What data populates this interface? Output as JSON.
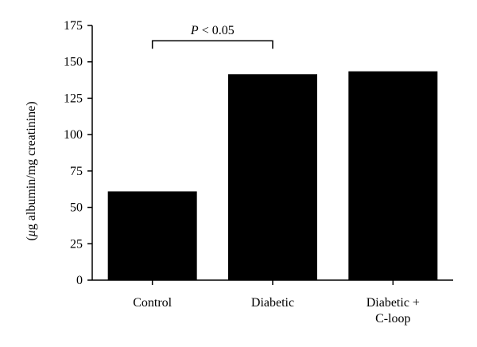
{
  "chart_data": {
    "type": "bar",
    "categories": [
      [
        "Control"
      ],
      [
        "Diabetic"
      ],
      [
        "Diabetic +",
        "C-loop"
      ]
    ],
    "values": [
      61,
      141.5,
      143.5
    ],
    "ylabel_prefix": "(",
    "ylabel_symbol": "μ",
    "ylabel_rest": "g albumin/mg creatinine)",
    "ylim": [
      0,
      175
    ],
    "yticks": [
      0,
      25,
      50,
      75,
      100,
      125,
      150,
      175
    ],
    "grid": false,
    "bar_color": "#000000",
    "annotation": {
      "p_symbol": "P",
      "text": " < 0.05",
      "from_category": 0,
      "to_category": 1,
      "y_value": 164.5
    }
  }
}
